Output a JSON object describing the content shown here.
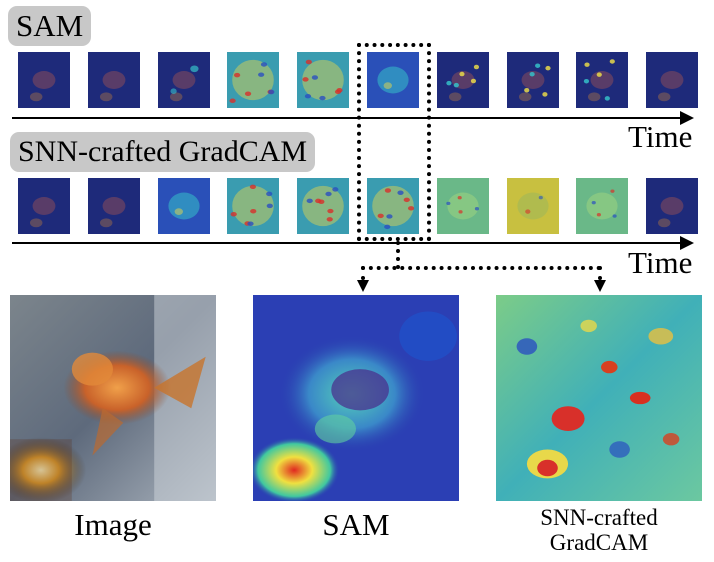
{
  "top_row": {
    "label": "SAM"
  },
  "bottom_row": {
    "label": "SNN-crafted GradCAM"
  },
  "time_label": "Time",
  "captions": {
    "image": "Image",
    "sam": "SAM",
    "gradcam_line1": "SNN-crafted",
    "gradcam_line2": "GradCAM"
  },
  "colors": {
    "deep_blue": "#1e2a7a",
    "jet_cyan": "#35c0c8",
    "jet_yellow": "#e8d84a",
    "jet_red": "#d8302a",
    "fish_orange": "#d9782a",
    "label_gray": "#c8c8c8"
  },
  "sam_frames": [
    "dark",
    "dark",
    "faint",
    "heat",
    "heat",
    "medium",
    "spots",
    "spots",
    "spots",
    "dark"
  ],
  "gradcam_frames": [
    "dark",
    "dark",
    "medium",
    "heat",
    "heat",
    "heat",
    "green",
    "yellow",
    "green",
    "dark"
  ],
  "highlighted_frame_index": 5
}
